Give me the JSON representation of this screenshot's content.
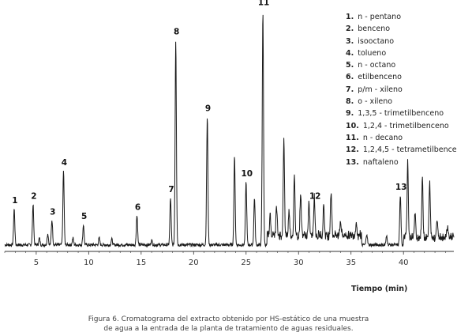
{
  "chart_data": {
    "type": "line",
    "xlabel": "Tiempo (min)",
    "ylabel": "",
    "xlim": [
      2,
      44.8
    ],
    "ylim": [
      0,
      100
    ],
    "xticks": [
      5,
      10,
      15,
      20,
      25,
      30,
      35,
      40
    ],
    "tick_labels": [
      "5",
      "10",
      "15",
      "20",
      "25",
      "30",
      "35",
      "40"
    ],
    "grid": false,
    "legend_position": "top-right",
    "baseline": 1.5,
    "peaks": [
      {
        "x": 2.9,
        "y": 16
      },
      {
        "x": 4.7,
        "y": 18
      },
      {
        "x": 5.3,
        "y": 3
      },
      {
        "x": 6.1,
        "y": 5
      },
      {
        "x": 6.5,
        "y": 11
      },
      {
        "x": 7.6,
        "y": 33
      },
      {
        "x": 8.5,
        "y": 3
      },
      {
        "x": 9.5,
        "y": 9
      },
      {
        "x": 11.0,
        "y": 3
      },
      {
        "x": 12.2,
        "y": 2.5
      },
      {
        "x": 14.6,
        "y": 13
      },
      {
        "x": 16.0,
        "y": 2
      },
      {
        "x": 17.8,
        "y": 21
      },
      {
        "x": 18.3,
        "y": 91
      },
      {
        "x": 21.3,
        "y": 57
      },
      {
        "x": 23.9,
        "y": 39
      },
      {
        "x": 25.0,
        "y": 28
      },
      {
        "x": 25.8,
        "y": 21
      },
      {
        "x": 26.6,
        "y": 104
      },
      {
        "x": 27.3,
        "y": 9
      },
      {
        "x": 27.9,
        "y": 12
      },
      {
        "x": 28.6,
        "y": 42
      },
      {
        "x": 29.1,
        "y": 11
      },
      {
        "x": 29.6,
        "y": 26
      },
      {
        "x": 30.2,
        "y": 19
      },
      {
        "x": 31.0,
        "y": 14
      },
      {
        "x": 31.5,
        "y": 18
      },
      {
        "x": 32.4,
        "y": 14
      },
      {
        "x": 33.1,
        "y": 20
      },
      {
        "x": 34.0,
        "y": 7
      },
      {
        "x": 35.5,
        "y": 6
      },
      {
        "x": 36.5,
        "y": 5
      },
      {
        "x": 38.4,
        "y": 4
      },
      {
        "x": 39.7,
        "y": 22
      },
      {
        "x": 40.4,
        "y": 33
      },
      {
        "x": 41.1,
        "y": 10
      },
      {
        "x": 41.8,
        "y": 26
      },
      {
        "x": 42.5,
        "y": 24
      },
      {
        "x": 43.2,
        "y": 8
      },
      {
        "x": 44.2,
        "y": 5
      }
    ],
    "peak_labels": [
      {
        "text": "1",
        "x": 2.9,
        "y": 16
      },
      {
        "text": "2",
        "x": 4.7,
        "y": 18
      },
      {
        "text": "3",
        "x": 6.5,
        "y": 11
      },
      {
        "text": "4",
        "x": 7.6,
        "y": 33
      },
      {
        "text": "5",
        "x": 9.5,
        "y": 9
      },
      {
        "text": "6",
        "x": 14.6,
        "y": 13
      },
      {
        "text": "7",
        "x": 17.8,
        "y": 21
      },
      {
        "text": "8",
        "x": 18.3,
        "y": 91
      },
      {
        "text": "9",
        "x": 21.3,
        "y": 57
      },
      {
        "text": "10",
        "x": 25.0,
        "y": 28
      },
      {
        "text": "11",
        "x": 26.6,
        "y": 104
      },
      {
        "text": "12",
        "x": 31.5,
        "y": 18
      },
      {
        "text": "13",
        "x": 39.7,
        "y": 22
      }
    ],
    "legend": [
      {
        "num": "1.",
        "name": "n - pentano"
      },
      {
        "num": "2.",
        "name": "benceno"
      },
      {
        "num": "3.",
        "name": "isooctano"
      },
      {
        "num": "4.",
        "name": "tolueno"
      },
      {
        "num": "5.",
        "name": "n - octano"
      },
      {
        "num": "6.",
        "name": "etilbenceno"
      },
      {
        "num": "7.",
        "name": "p/m - xileno"
      },
      {
        "num": "8.",
        "name": "o - xileno"
      },
      {
        "num": "9.",
        "name": "1,3,5 - trimetilbenceno"
      },
      {
        "num": "10.",
        "name": "1,2,4 - trimetilbenceno"
      },
      {
        "num": "11.",
        "name": "n - decano"
      },
      {
        "num": "12.",
        "name": "1,2,4,5 - tetrametilbenceno"
      },
      {
        "num": "13.",
        "name": "naftaleno"
      }
    ],
    "line_color": "#1a1a1a"
  },
  "caption": {
    "line1": "Figura 6. Cromatograma del extracto obtenido por HS-estático de una muestra",
    "line2": "de agua a la entrada de la planta de tratamiento de aguas residuales."
  }
}
